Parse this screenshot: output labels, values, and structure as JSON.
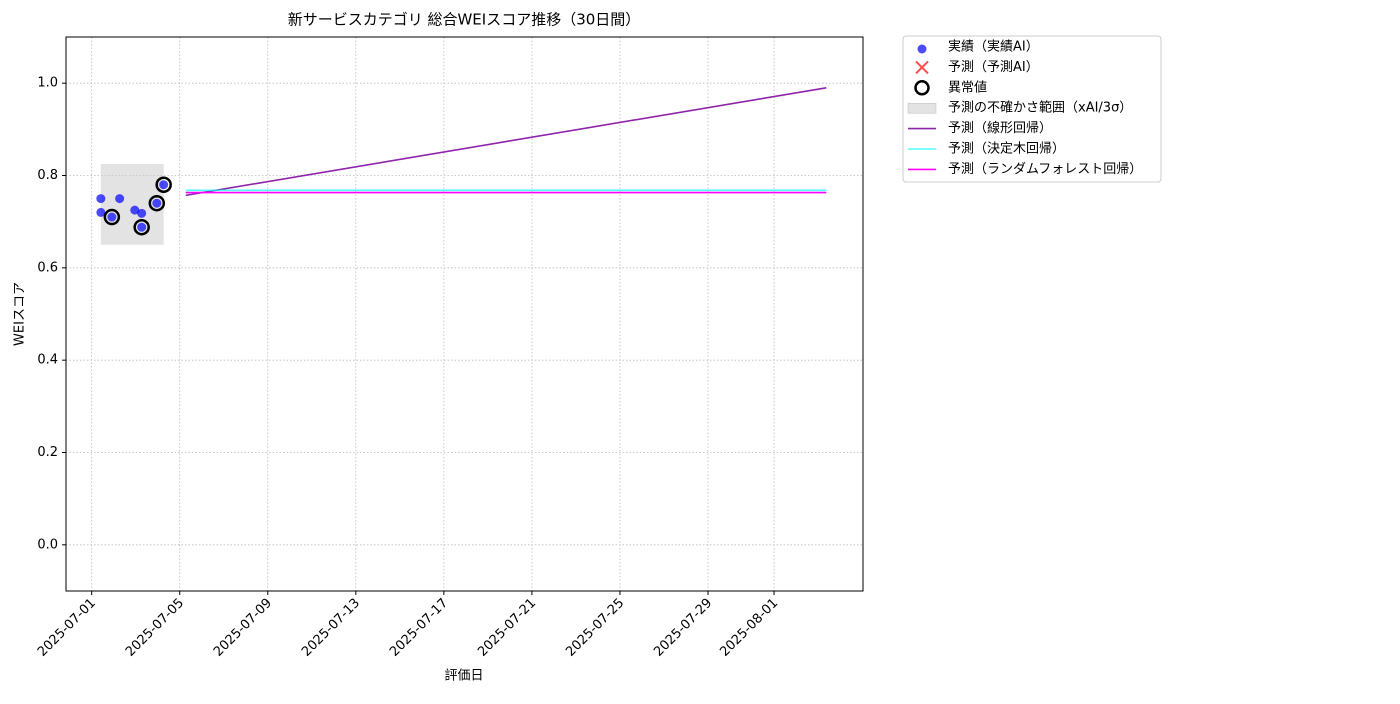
{
  "chart_data": {
    "type": "scatter",
    "title": "新サービスカテゴリ 総合WEIスコア推移（30日間）",
    "x_label": "評価日",
    "y_label": "WEIスコア",
    "xlim": [
      "2025-06-29T20:00",
      "2025-08-05T01:00"
    ],
    "xticks": [
      "2025-07-01",
      "2025-07-05",
      "2025-07-09",
      "2025-07-13",
      "2025-07-17",
      "2025-07-21",
      "2025-07-25",
      "2025-07-29",
      "2025-08-01"
    ],
    "ylim": [
      -0.1,
      1.1
    ],
    "yticks": [
      {
        "value": 0,
        "label": "0.0"
      },
      0.2,
      0.4,
      0.6,
      0.8,
      {
        "value": 1,
        "label": "1.0"
      }
    ],
    "grid": true,
    "legend": "outside-upper-right",
    "series": [
      {
        "name": "実績（実績AI）",
        "kind": "points",
        "color": "#0000ff",
        "alpha": 0.7,
        "x": [
          "2025-07-01T10:00",
          "2025-07-01T10:00",
          "2025-07-01T22:00",
          "2025-07-02T06:30",
          "2025-07-02T23:00",
          "2025-07-03T06:30",
          "2025-07-03T06:30",
          "2025-07-03T23:00",
          "2025-07-04T06:30"
        ],
        "values": [
          0.75,
          0.72,
          0.71,
          0.75,
          0.725,
          0.718,
          0.688,
          0.74,
          0.78
        ]
      },
      {
        "name": "予測（予測AI）",
        "kind": "cross",
        "color": "#ff0000",
        "alpha": 0.7,
        "x": [],
        "values": []
      },
      {
        "name": "異常値",
        "kind": "ring",
        "color": "#000000",
        "x": [
          "2025-07-01T22:00",
          "2025-07-03T06:30",
          "2025-07-03T23:00",
          "2025-07-04T06:30"
        ],
        "values": [
          0.71,
          0.688,
          0.74,
          0.78
        ]
      },
      {
        "name": "予測の不確かさ範囲（xAI/3σ）",
        "kind": "band",
        "color": "#c8c8c8",
        "alpha": 0.5,
        "x": [
          "2025-07-01T10:00",
          "2025-07-04T06:30"
        ],
        "lower": [
          0.65,
          0.65
        ],
        "upper": [
          0.825,
          0.825
        ]
      },
      {
        "name": "予測（線形回帰）",
        "kind": "line",
        "color": "#8e24aa",
        "x": [
          "2025-07-05T06:30",
          "2025-08-03T09:00"
        ],
        "values": [
          0.757,
          0.99
        ]
      },
      {
        "name": "予測（決定木回帰）",
        "kind": "line",
        "color": "#00ffff",
        "alpha": 0.7,
        "x": [
          "2025-07-05T06:30",
          "2025-08-03T09:00"
        ],
        "values": [
          0.768,
          0.768
        ]
      },
      {
        "name": "予測（ランダムフォレスト回帰）",
        "kind": "line",
        "color": "#ff00ff",
        "x": [
          "2025-07-05T06:30",
          "2025-08-03T09:00"
        ],
        "values": [
          0.763,
          0.763
        ]
      }
    ]
  }
}
